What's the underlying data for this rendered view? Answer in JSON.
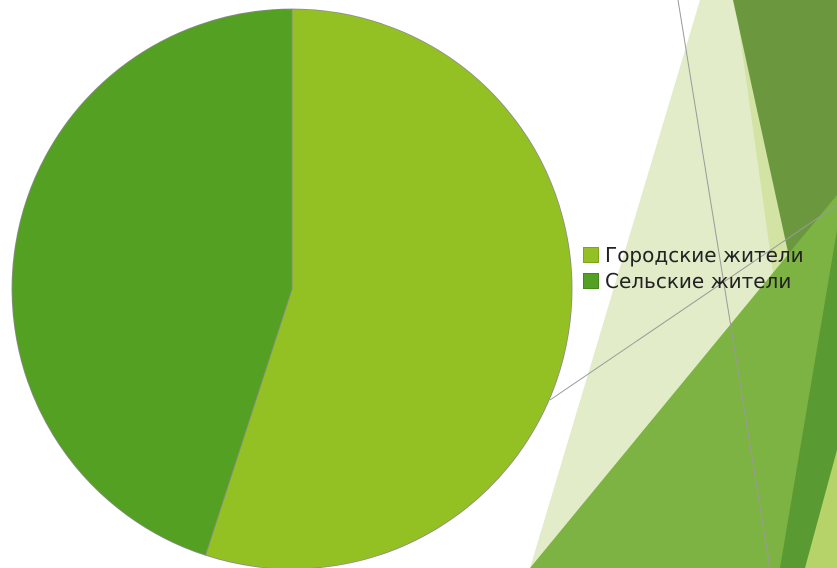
{
  "chart_data": {
    "type": "pie",
    "title": "",
    "categories": [
      "Городские жители",
      "Сельские жители"
    ],
    "values": [
      55,
      45
    ],
    "colors": [
      "#93c124",
      "#54a022"
    ],
    "start_angle_deg": 0,
    "direction": "clockwise",
    "legend": {
      "placement": "right",
      "items": [
        {
          "label": "Городские жители",
          "color": "#93c124"
        },
        {
          "label": "Сельские жители",
          "color": "#54a022"
        }
      ]
    }
  },
  "theme": {
    "background": "#ffffff",
    "decor_colors": [
      "#dfeac3",
      "#cfe19b",
      "#6b983f",
      "#7cb343",
      "#5a9a33",
      "#b6d36a"
    ]
  }
}
